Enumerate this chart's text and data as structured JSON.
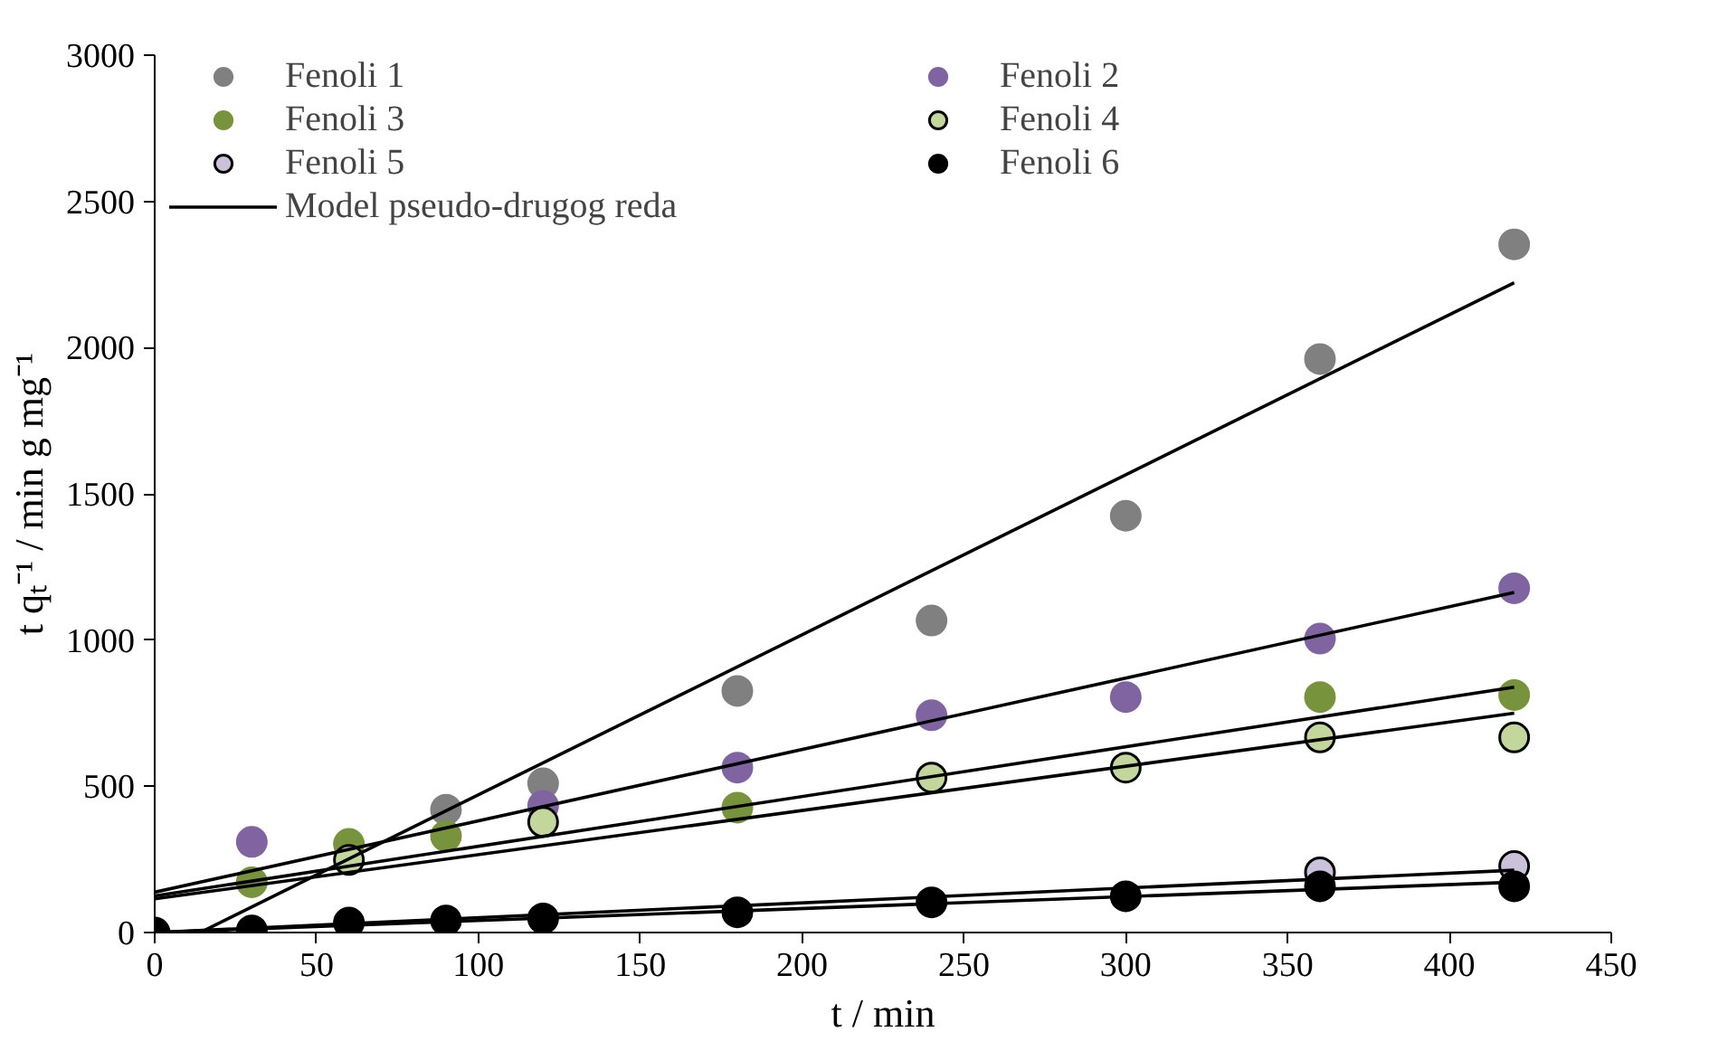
{
  "chart_data": {
    "type": "scatter",
    "xlabel": "t / min",
    "ylabel": "t qₜ⁻¹ / min g mg⁻¹",
    "x": [
      0,
      30,
      60,
      90,
      120,
      180,
      240,
      300,
      360,
      420
    ],
    "xlim": [
      0,
      450
    ],
    "xticks": [
      0,
      50,
      100,
      150,
      200,
      250,
      300,
      350,
      400,
      450
    ],
    "ylim": [
      0,
      3000
    ],
    "yticks": [
      0,
      500,
      1000,
      1500,
      2000,
      2500,
      3000
    ],
    "grid": false,
    "legend": "top",
    "marker": "circle",
    "series": [
      {
        "name": "Fenoli 1",
        "color": "#808080",
        "values": [
          null,
          null,
          null,
          420,
          510,
          826,
          1067,
          1425,
          1961,
          2353
        ]
      },
      {
        "name": "Fenoli 2",
        "color": "#8064a2",
        "values": [
          null,
          310,
          null,
          null,
          433,
          564,
          743,
          805,
          1005,
          1177
        ]
      },
      {
        "name": "Fenoli 3",
        "color": "#77933c",
        "values": [
          null,
          172,
          303,
          330,
          null,
          427,
          null,
          null,
          805,
          812
        ]
      },
      {
        "name": "Fenoli 4",
        "color": "#c3d69b",
        "values": [
          null,
          null,
          248,
          null,
          378,
          null,
          530,
          564,
          667,
          667
        ]
      },
      {
        "name": "Fenoli 5",
        "color": "#ccc1da",
        "values": [
          null,
          null,
          null,
          null,
          null,
          null,
          null,
          null,
          206,
          227
        ]
      },
      {
        "name": "Fenoli 6",
        "color": "#000000",
        "values": [
          0,
          7,
          34,
          41,
          48,
          69,
          103,
          124,
          158,
          158
        ]
      },
      {
        "name": "Model pseudo-drugog reda",
        "type": "line",
        "marker": "none",
        "color": "#000000",
        "x": [
          14,
          420
        ],
        "values": [
          0,
          2222
        ]
      },
      {
        "type": "line",
        "marker": "none",
        "color": "#000000",
        "x": [
          0,
          420
        ],
        "values": [
          138,
          1163
        ]
      },
      {
        "type": "line",
        "marker": "none",
        "color": "#000000",
        "x": [
          0,
          420
        ],
        "values": [
          125,
          839
        ]
      },
      {
        "type": "line",
        "marker": "none",
        "color": "#000000",
        "x": [
          0,
          420
        ],
        "values": [
          115,
          750
        ]
      },
      {
        "type": "line",
        "marker": "none",
        "color": "#000000",
        "x": [
          0,
          420
        ],
        "values": [
          0,
          213
        ]
      },
      {
        "type": "line",
        "marker": "none",
        "color": "#000000",
        "x": [
          0,
          420
        ],
        "values": [
          0,
          172
        ]
      }
    ]
  }
}
